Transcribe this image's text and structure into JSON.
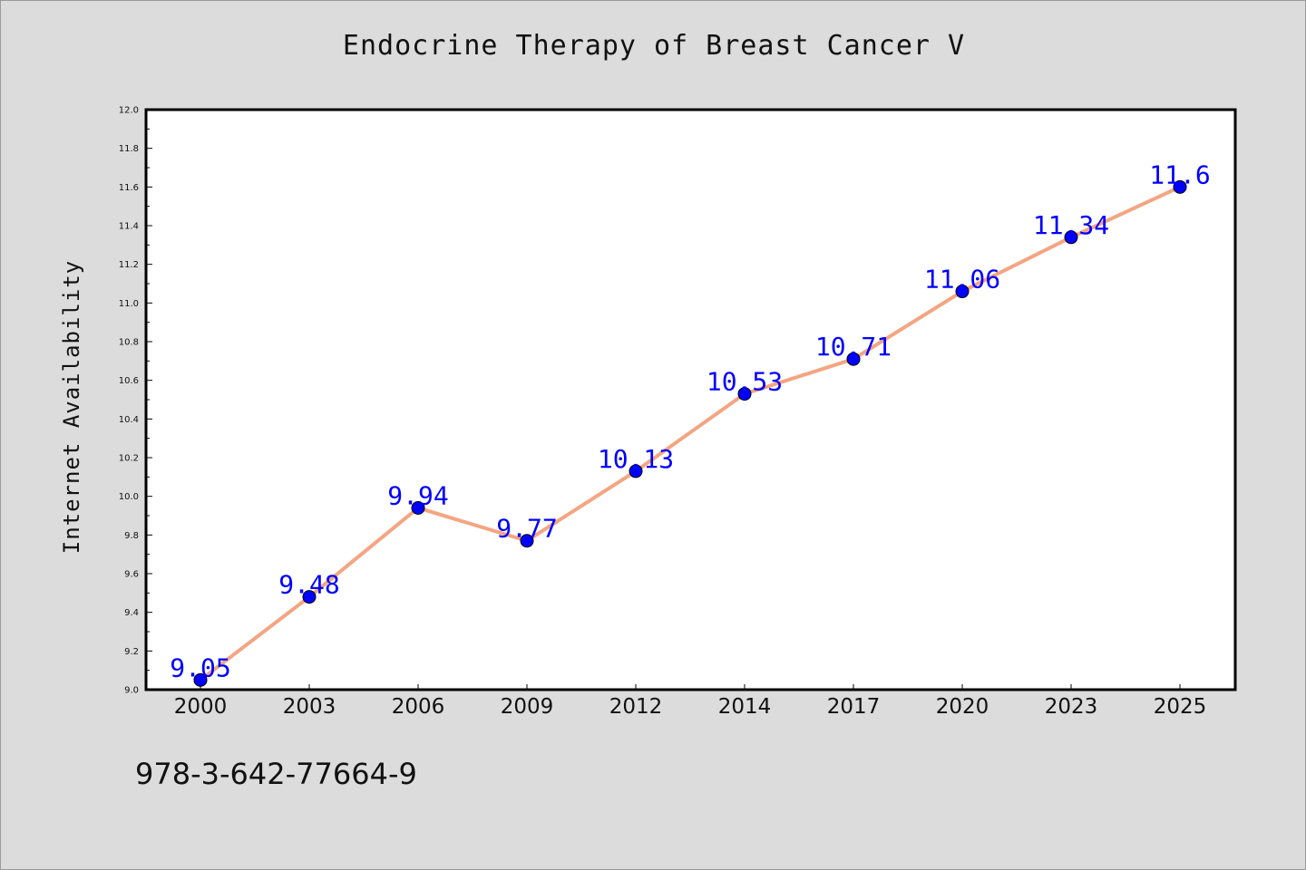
{
  "chart_data": {
    "type": "line",
    "title": "Endocrine Therapy of Breast Cancer V",
    "xlabel": "",
    "ylabel": "Internet Availability",
    "categories": [
      "2000",
      "2003",
      "2006",
      "2009",
      "2012",
      "2014",
      "2017",
      "2020",
      "2023",
      "2025"
    ],
    "series": [
      {
        "values": [
          9.05,
          9.48,
          9.94,
          9.77,
          10.13,
          10.53,
          10.71,
          11.06,
          11.34,
          11.6
        ],
        "data_labels": [
          "9.05",
          "9.48",
          "9.94",
          "9.77",
          "10.13",
          "10.53",
          "10.71",
          "11.06",
          "11.34",
          "11.6"
        ],
        "line_color": "#f4a582",
        "marker_color": "#0000ff",
        "label_color": "#0000ff"
      }
    ],
    "ylim": [
      9.0,
      12.0
    ],
    "yticks": [
      "9.0",
      "9.2",
      "9.4",
      "9.6",
      "9.8",
      "10.0",
      "10.2",
      "10.4",
      "10.6",
      "10.8",
      "11.0",
      "11.2",
      "11.4",
      "11.6",
      "11.8",
      "12.0"
    ],
    "grid": false,
    "legend": "none"
  },
  "footer": {
    "isbn": "978-3-642-77664-9"
  },
  "colors": {
    "background": "#dcdcdc",
    "plot_background": "#ffffff"
  }
}
